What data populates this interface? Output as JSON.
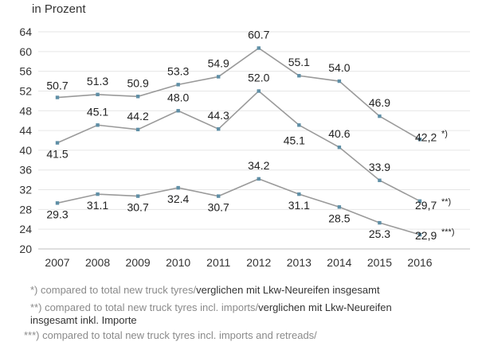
{
  "chart_data": {
    "type": "line",
    "unit_label": "in Prozent",
    "categories": [
      "2007",
      "2008",
      "2009",
      "2010",
      "2011",
      "2012",
      "2013",
      "2014",
      "2015",
      "2016"
    ],
    "ylim": [
      20,
      64
    ],
    "yticks": [
      20,
      24,
      28,
      32,
      36,
      40,
      44,
      48,
      52,
      56,
      60,
      64
    ],
    "ytick_labels": [
      "20",
      "24",
      "28",
      "32",
      "36",
      "40",
      "44",
      "48",
      "52",
      "56",
      "60",
      "64"
    ],
    "grid": true,
    "series": [
      {
        "marker_label": "*)",
        "values": [
          50.7,
          51.3,
          50.9,
          53.3,
          54.9,
          60.7,
          55.1,
          54.0,
          46.9,
          42.2
        ],
        "labels": [
          "50.7",
          "51.3",
          "50.9",
          "53.3",
          "54.9",
          "60.7",
          "55.1",
          "54.0",
          "46.9",
          "42,2"
        ]
      },
      {
        "marker_label": "**)",
        "values": [
          41.5,
          45.1,
          44.2,
          48.0,
          44.3,
          52.0,
          45.1,
          40.6,
          33.9,
          29.7
        ],
        "labels": [
          "41.5",
          "45.1",
          "44.2",
          "48.0",
          "44.3",
          "52.0",
          "45.1",
          "40.6",
          "33.9",
          "29,7"
        ]
      },
      {
        "marker_label": "***)",
        "values": [
          29.3,
          31.1,
          30.7,
          32.4,
          30.7,
          34.2,
          31.1,
          28.5,
          25.3,
          22.9
        ],
        "labels": [
          "29.3",
          "31.1",
          "30.7",
          "32.4",
          "30.7",
          "34.2",
          "31.1",
          "28.5",
          "25.3",
          "22,9"
        ]
      }
    ]
  },
  "footnotes": [
    {
      "mark": "*)",
      "en": "compared to total new truck tyres/",
      "de": "verglichen mit Lkw-Neureifen insgesamt"
    },
    {
      "mark": "**)",
      "en": "compared to total new truck tyres incl. imports/",
      "de": "verglichen mit Lkw-Neureifen",
      "de2": "insgesamt inkl. Importe"
    },
    {
      "mark": "***)",
      "en": "compared to total new truck tyres incl. imports and retreads/",
      "de": ""
    }
  ],
  "colors": {
    "line": "#9a9a9a",
    "marker": "#5f8fa6",
    "grid": "#e6e6e6"
  }
}
